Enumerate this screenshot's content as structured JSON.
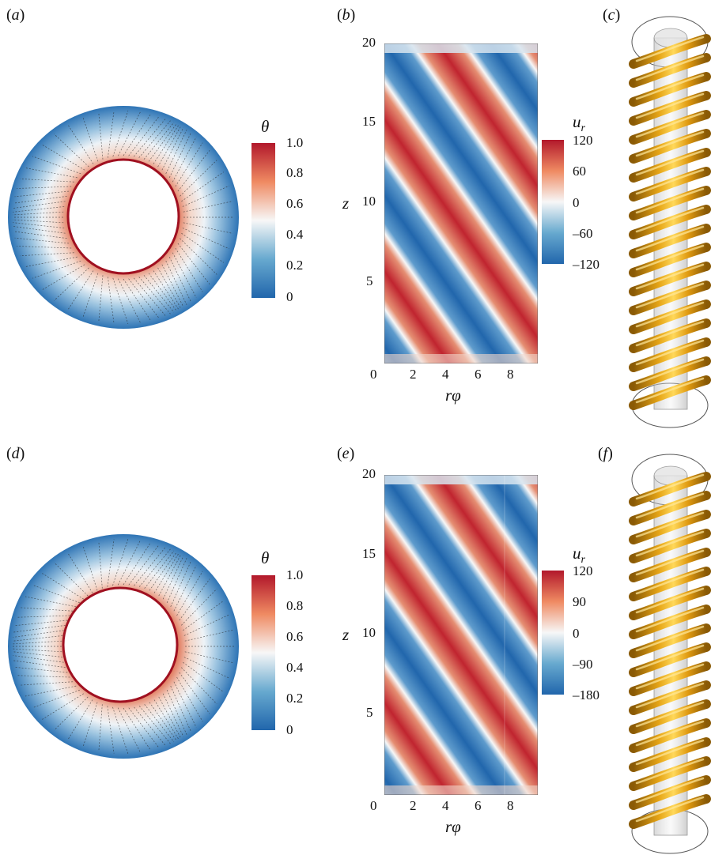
{
  "panels": {
    "a": {
      "label": "a"
    },
    "b": {
      "label": "b"
    },
    "c": {
      "label": "c"
    },
    "d": {
      "label": "d"
    },
    "e": {
      "label": "e"
    },
    "f": {
      "label": "f"
    }
  },
  "colorbars": {
    "theta_top": {
      "symbol": "θ",
      "ticks": [
        "1.0",
        "0.8",
        "0.6",
        "0.4",
        "0.2",
        "0"
      ]
    },
    "ur_top": {
      "symbol": "u",
      "subscript": "r",
      "ticks": [
        "120",
        "60",
        "0",
        "–60",
        "–120"
      ]
    },
    "theta_bot": {
      "symbol": "θ",
      "ticks": [
        "1.0",
        "0.8",
        "0.6",
        "0.4",
        "0.2",
        "0"
      ]
    },
    "ur_bot": {
      "symbol": "u",
      "subscript": "r",
      "ticks": [
        "120",
        "90",
        "0",
        "–90",
        "–180"
      ]
    }
  },
  "chart_data": [
    {
      "type": "heatmap",
      "panel": "b",
      "xlabel": "rφ",
      "ylabel": "z",
      "xlim": [
        0,
        9.4
      ],
      "ylim": [
        0,
        20
      ],
      "xticks": [
        "0",
        "2",
        "4",
        "6",
        "8"
      ],
      "yticks": [
        "5",
        "10",
        "15",
        "20"
      ],
      "colorbar_label": "u_r",
      "colorbar_ticks": [
        120,
        60,
        0,
        -60,
        -120
      ],
      "pattern": "diagonal stripes"
    },
    {
      "type": "heatmap",
      "panel": "e",
      "xlabel": "rφ",
      "ylabel": "z",
      "xlim": [
        0,
        9.4
      ],
      "ylim": [
        0,
        20
      ],
      "xticks": [
        "0",
        "2",
        "4",
        "6",
        "8"
      ],
      "yticks": [
        "5",
        "10",
        "15",
        "20"
      ],
      "colorbar_label": "u_r",
      "colorbar_ticks": [
        120,
        90,
        0,
        -90,
        -180
      ],
      "pattern": "diagonal stripes"
    }
  ],
  "colors": {
    "red": "#b2182b",
    "white": "#f7f7f7",
    "blue": "#2166ac",
    "gold": "#f2b01e"
  }
}
